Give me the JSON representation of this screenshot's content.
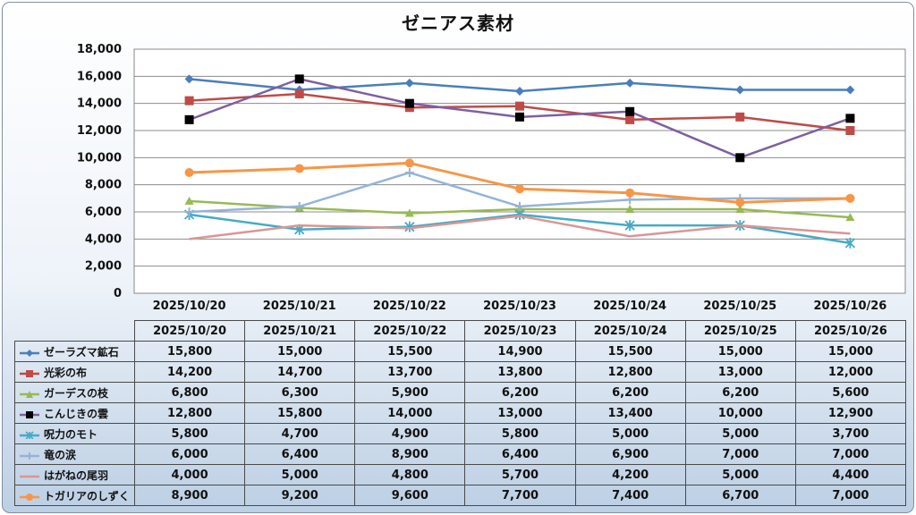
{
  "chart_data": {
    "type": "line",
    "title": "ゼニアス素材",
    "categories": [
      "2025/10/20",
      "2025/10/21",
      "2025/10/22",
      "2025/10/23",
      "2025/10/24",
      "2025/10/25",
      "2025/10/26"
    ],
    "ylim": [
      0,
      18000
    ],
    "ytick_step": 2000,
    "ytick_labels": [
      "0",
      "2,000",
      "4,000",
      "6,000",
      "8,000",
      "10,000",
      "12,000",
      "14,000",
      "16,000",
      "18,000"
    ],
    "grid": true,
    "legend": "data-table-below",
    "series": [
      {
        "name": "ゼーラズマ鉱石",
        "color": "#4a7ebb",
        "marker": "diamond",
        "values": [
          15800,
          15000,
          15500,
          14900,
          15500,
          15000,
          15000
        ],
        "labels": [
          "15,800",
          "15,000",
          "15,500",
          "14,900",
          "15,500",
          "15,000",
          "15,000"
        ]
      },
      {
        "name": "光彩の布",
        "color": "#be4b48",
        "marker": "square",
        "values": [
          14200,
          14700,
          13700,
          13800,
          12800,
          13000,
          12000
        ],
        "labels": [
          "14,200",
          "14,700",
          "13,700",
          "13,800",
          "12,800",
          "13,000",
          "12,000"
        ]
      },
      {
        "name": "ガーデスの枝",
        "color": "#98b954",
        "marker": "triangle",
        "values": [
          6800,
          6300,
          5900,
          6200,
          6200,
          6200,
          5600
        ],
        "labels": [
          "6,800",
          "6,300",
          "5,900",
          "6,200",
          "6,200",
          "6,200",
          "5,600"
        ]
      },
      {
        "name": "こんじきの雲",
        "color": "#7d60a0",
        "marker": "square-black",
        "values": [
          12800,
          15800,
          14000,
          13000,
          13400,
          10000,
          12900
        ],
        "labels": [
          "12,800",
          "15,800",
          "14,000",
          "13,000",
          "13,400",
          "10,000",
          "12,900"
        ]
      },
      {
        "name": "呪力のモト",
        "color": "#46aac5",
        "marker": "star",
        "values": [
          5800,
          4700,
          4900,
          5800,
          5000,
          5000,
          3700
        ],
        "labels": [
          "5,800",
          "4,700",
          "4,900",
          "5,800",
          "5,000",
          "5,000",
          "3,700"
        ]
      },
      {
        "name": "竜の涙",
        "color": "#95b3d7",
        "marker": "plus",
        "values": [
          6000,
          6400,
          8900,
          6400,
          6900,
          7000,
          7000
        ],
        "labels": [
          "6,000",
          "6,400",
          "8,900",
          "6,400",
          "6,900",
          "7,000",
          "7,000"
        ]
      },
      {
        "name": "はがねの尾羽",
        "color": "#d99694",
        "marker": "none",
        "values": [
          4000,
          5000,
          4800,
          5700,
          4200,
          5000,
          4400
        ],
        "labels": [
          "4,000",
          "5,000",
          "4,800",
          "5,700",
          "4,200",
          "5,000",
          "4,400"
        ]
      },
      {
        "name": "トガリアのしずく",
        "color": "#f79646",
        "marker": "circle",
        "values": [
          8900,
          9200,
          9600,
          7700,
          7400,
          6700,
          7000
        ],
        "labels": [
          "8,900",
          "9,200",
          "9,600",
          "7,700",
          "7,400",
          "6,700",
          "7,000"
        ]
      }
    ]
  }
}
